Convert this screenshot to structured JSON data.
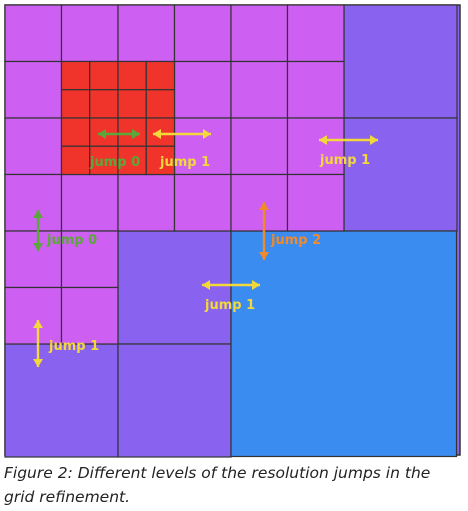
{
  "figure": {
    "caption": "Figure 2: Different levels of the resolution jumps in the grid refinement."
  },
  "colors": {
    "fine_level": "#cd5ff2",
    "finest_level": "#f0342c",
    "coarse_level": "#8a62f0",
    "coarsest_level": "#3a8cf0",
    "jump0": "#5aa83a",
    "jump1": "#f2d83a",
    "jump2": "#f08a2a"
  },
  "labels": {
    "jump0_a": "jump 0",
    "jump1_a": "jump 1",
    "jump1_b": "jump 1",
    "jump0_b": "jump 0",
    "jump2": "jump 2",
    "jump1_c": "jump 1",
    "jump1_d": "jump 1"
  }
}
